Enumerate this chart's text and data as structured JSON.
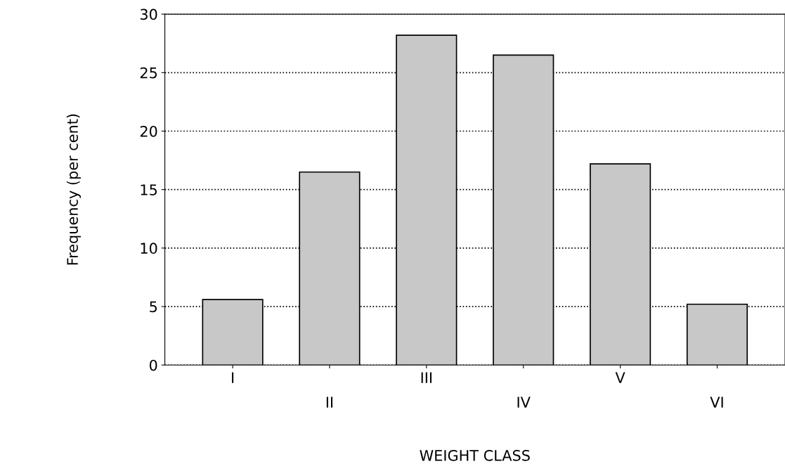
{
  "chart_data": {
    "type": "bar",
    "xlabel": "WEIGHT CLASS",
    "ylabel": "Frequency (per cent)",
    "categories": [
      "I",
      "II",
      "III",
      "IV",
      "V",
      "VI"
    ],
    "values": [
      5.6,
      16.5,
      28.2,
      26.5,
      17.2,
      5.2
    ],
    "color": "#c8c8c8",
    "ylim": [
      0,
      30
    ],
    "yticks": [
      0,
      5,
      10,
      15,
      20,
      25,
      30
    ],
    "grid": "y",
    "line_style": "dotted"
  }
}
